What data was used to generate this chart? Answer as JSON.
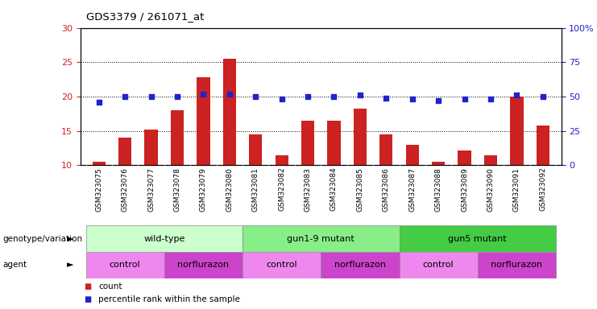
{
  "title": "GDS3379 / 261071_at",
  "samples": [
    "GSM323075",
    "GSM323076",
    "GSM323077",
    "GSM323078",
    "GSM323079",
    "GSM323080",
    "GSM323081",
    "GSM323082",
    "GSM323083",
    "GSM323084",
    "GSM323085",
    "GSM323086",
    "GSM323087",
    "GSM323088",
    "GSM323089",
    "GSM323090",
    "GSM323091",
    "GSM323092"
  ],
  "counts": [
    10.5,
    14.0,
    15.2,
    18.0,
    22.8,
    25.5,
    14.5,
    11.5,
    16.5,
    16.5,
    18.2,
    14.5,
    13.0,
    10.5,
    12.2,
    11.5,
    20.0,
    15.8
  ],
  "percentile_ranks": [
    46,
    50,
    50,
    50,
    52,
    52,
    50,
    48,
    50,
    50,
    51,
    49,
    48,
    47,
    48,
    48,
    51,
    50
  ],
  "ylim_left": [
    10,
    30
  ],
  "ylim_right": [
    0,
    100
  ],
  "yticks_left": [
    10,
    15,
    20,
    25,
    30
  ],
  "yticks_right": [
    0,
    25,
    50,
    75,
    100
  ],
  "ytick_labels_right": [
    "0",
    "25",
    "50",
    "75",
    "100%"
  ],
  "grid_values": [
    15,
    20,
    25
  ],
  "bar_color": "#cc2222",
  "dot_color": "#2222cc",
  "bar_width": 0.5,
  "genotype_groups": [
    {
      "label": "wild-type",
      "start": 0,
      "end": 5,
      "color": "#ccffcc"
    },
    {
      "label": "gun1-9 mutant",
      "start": 6,
      "end": 11,
      "color": "#88ee88"
    },
    {
      "label": "gun5 mutant",
      "start": 12,
      "end": 17,
      "color": "#44cc44"
    }
  ],
  "agent_groups": [
    {
      "label": "control",
      "start": 0,
      "end": 2,
      "color": "#ee88ee"
    },
    {
      "label": "norflurazon",
      "start": 3,
      "end": 5,
      "color": "#cc44cc"
    },
    {
      "label": "control",
      "start": 6,
      "end": 8,
      "color": "#ee88ee"
    },
    {
      "label": "norflurazon",
      "start": 9,
      "end": 11,
      "color": "#cc44cc"
    },
    {
      "label": "control",
      "start": 12,
      "end": 14,
      "color": "#ee88ee"
    },
    {
      "label": "norflurazon",
      "start": 15,
      "end": 17,
      "color": "#cc44cc"
    }
  ],
  "background_color": "#ffffff",
  "plot_bg_color": "#ffffff",
  "tick_label_color_left": "#cc2222",
  "tick_label_color_right": "#2222cc",
  "gray_band_color": "#cccccc",
  "label_row_bg": "#ffffff"
}
